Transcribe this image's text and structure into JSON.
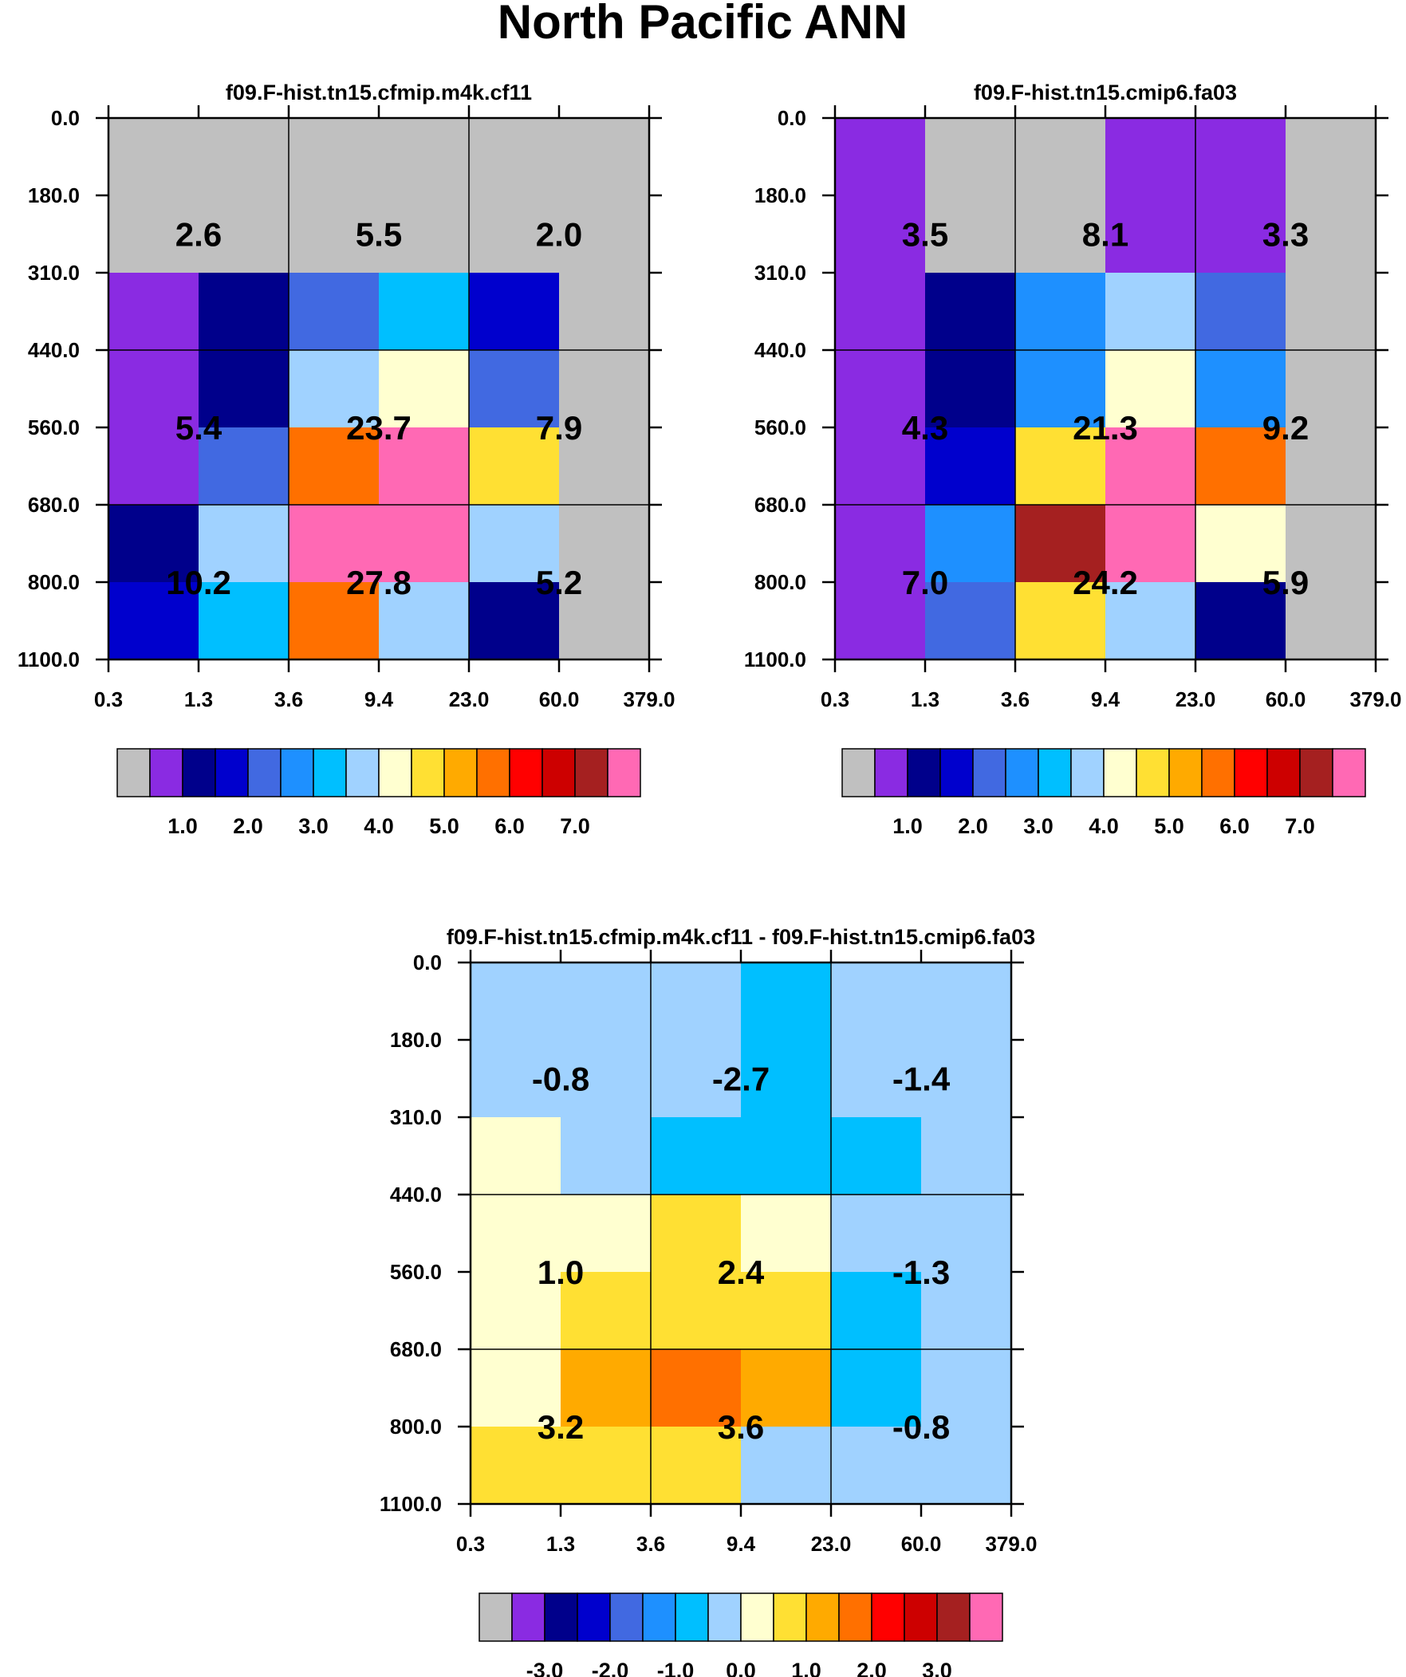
{
  "title": "North Pacific ANN",
  "palette": [
    "#c0c0c0",
    "#8a2be2",
    "#00008b",
    "#0000cd",
    "#4169e1",
    "#1e90ff",
    "#00bfff",
    "#a0d2ff",
    "#ffffd0",
    "#ffe033",
    "#ffaa00",
    "#ff7000",
    "#ff0000",
    "#cd0000",
    "#a52020",
    "#ff69b4"
  ],
  "chart_data": [
    {
      "type": "heatmap",
      "title": "f09.F-hist.tn15.cfmip.m4k.cf11",
      "xticks": [
        "0.3",
        "1.3",
        "3.6",
        "9.4",
        "23.0",
        "60.0",
        "379.0"
      ],
      "yticks": [
        "0.0",
        "180.0",
        "310.0",
        "440.0",
        "560.0",
        "680.0",
        "800.0",
        "1100.0"
      ],
      "cell_colors": [
        [
          0,
          0,
          0,
          0,
          0,
          0
        ],
        [
          1,
          2,
          4,
          6,
          3,
          0
        ],
        [
          1,
          2,
          7,
          8,
          4,
          0
        ],
        [
          1,
          4,
          11,
          15,
          9,
          0
        ],
        [
          2,
          7,
          15,
          15,
          7,
          0
        ],
        [
          3,
          6,
          11,
          7,
          2,
          0
        ]
      ],
      "summary_values": [
        [
          "2.6",
          "5.5",
          "2.0"
        ],
        [
          "5.4",
          "23.7",
          "7.9"
        ],
        [
          "10.2",
          "27.8",
          "5.2"
        ]
      ],
      "colorbar_labels": [
        "1.0",
        "2.0",
        "3.0",
        "4.0",
        "5.0",
        "6.0",
        "7.0"
      ]
    },
    {
      "type": "heatmap",
      "title": "f09.F-hist.tn15.cmip6.fa03",
      "xticks": [
        "0.3",
        "1.3",
        "3.6",
        "9.4",
        "23.0",
        "60.0",
        "379.0"
      ],
      "yticks": [
        "0.0",
        "180.0",
        "310.0",
        "440.0",
        "560.0",
        "680.0",
        "800.0",
        "1100.0"
      ],
      "cell_colors": [
        [
          1,
          0,
          0,
          1,
          1,
          0
        ],
        [
          1,
          2,
          5,
          7,
          4,
          0
        ],
        [
          1,
          2,
          5,
          8,
          5,
          0
        ],
        [
          1,
          3,
          9,
          15,
          11,
          0
        ],
        [
          1,
          5,
          14,
          15,
          8,
          0
        ],
        [
          1,
          4,
          9,
          7,
          2,
          0
        ]
      ],
      "summary_values": [
        [
          "3.5",
          "8.1",
          "3.3"
        ],
        [
          "4.3",
          "21.3",
          "9.2"
        ],
        [
          "7.0",
          "24.2",
          "5.9"
        ]
      ],
      "colorbar_labels": [
        "1.0",
        "2.0",
        "3.0",
        "4.0",
        "5.0",
        "6.0",
        "7.0"
      ]
    },
    {
      "type": "heatmap",
      "title": "f09.F-hist.tn15.cfmip.m4k.cf11 - f09.F-hist.tn15.cmip6.fa03",
      "xticks": [
        "0.3",
        "1.3",
        "3.6",
        "9.4",
        "23.0",
        "60.0",
        "379.0"
      ],
      "yticks": [
        "0.0",
        "180.0",
        "310.0",
        "440.0",
        "560.0",
        "680.0",
        "800.0",
        "1100.0"
      ],
      "cell_colors": [
        [
          7,
          7,
          7,
          6,
          7,
          7
        ],
        [
          8,
          7,
          6,
          6,
          6,
          7
        ],
        [
          8,
          8,
          9,
          8,
          7,
          7
        ],
        [
          8,
          9,
          9,
          9,
          6,
          7
        ],
        [
          8,
          10,
          11,
          10,
          6,
          7
        ],
        [
          9,
          9,
          9,
          7,
          7,
          7
        ]
      ],
      "summary_values": [
        [
          "-0.8",
          "-2.7",
          "-1.4"
        ],
        [
          "1.0",
          "2.4",
          "-1.3"
        ],
        [
          "3.2",
          "3.6",
          "-0.8"
        ]
      ],
      "colorbar_labels": [
        "-3.0",
        "-2.0",
        "-1.0",
        "0.0",
        "1.0",
        "2.0",
        "3.0"
      ]
    }
  ]
}
